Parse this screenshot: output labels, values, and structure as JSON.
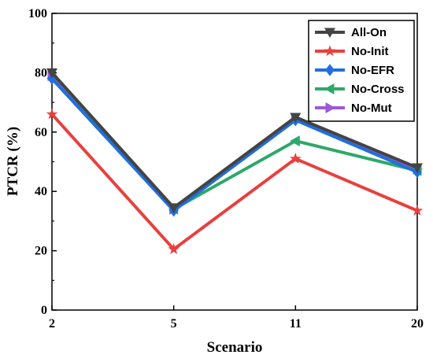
{
  "chart_data": {
    "type": "line",
    "xlabel": "Scenario",
    "ylabel": "PTCR (%)",
    "categories": [
      "2",
      "5",
      "11",
      "20"
    ],
    "ylim": [
      0,
      100
    ],
    "yticks": [
      0,
      20,
      40,
      60,
      80,
      100
    ],
    "grid": false,
    "legend_position": "top-right",
    "series": [
      {
        "name": "No-Mut",
        "color": "#9b59d6",
        "marker": "triangle-right",
        "values": [
          79,
          34,
          64.5,
          47.5
        ]
      },
      {
        "name": "No-Cross",
        "color": "#2ea86a",
        "marker": "triangle-left",
        "values": [
          78,
          34,
          57,
          47
        ]
      },
      {
        "name": "No-Init",
        "color": "#e8403e",
        "marker": "star",
        "values": [
          66,
          20.5,
          51,
          33.5
        ]
      },
      {
        "name": "No-EFR",
        "color": "#1f6fe0",
        "marker": "diamond",
        "values": [
          78,
          33.5,
          64,
          46.5
        ]
      },
      {
        "name": "All-On",
        "color": "#444444",
        "marker": "triangle-down",
        "values": [
          80,
          34.5,
          65,
          48
        ]
      }
    ],
    "legend_order": [
      "All-On",
      "No-Init",
      "No-EFR",
      "No-Cross",
      "No-Mut"
    ]
  }
}
